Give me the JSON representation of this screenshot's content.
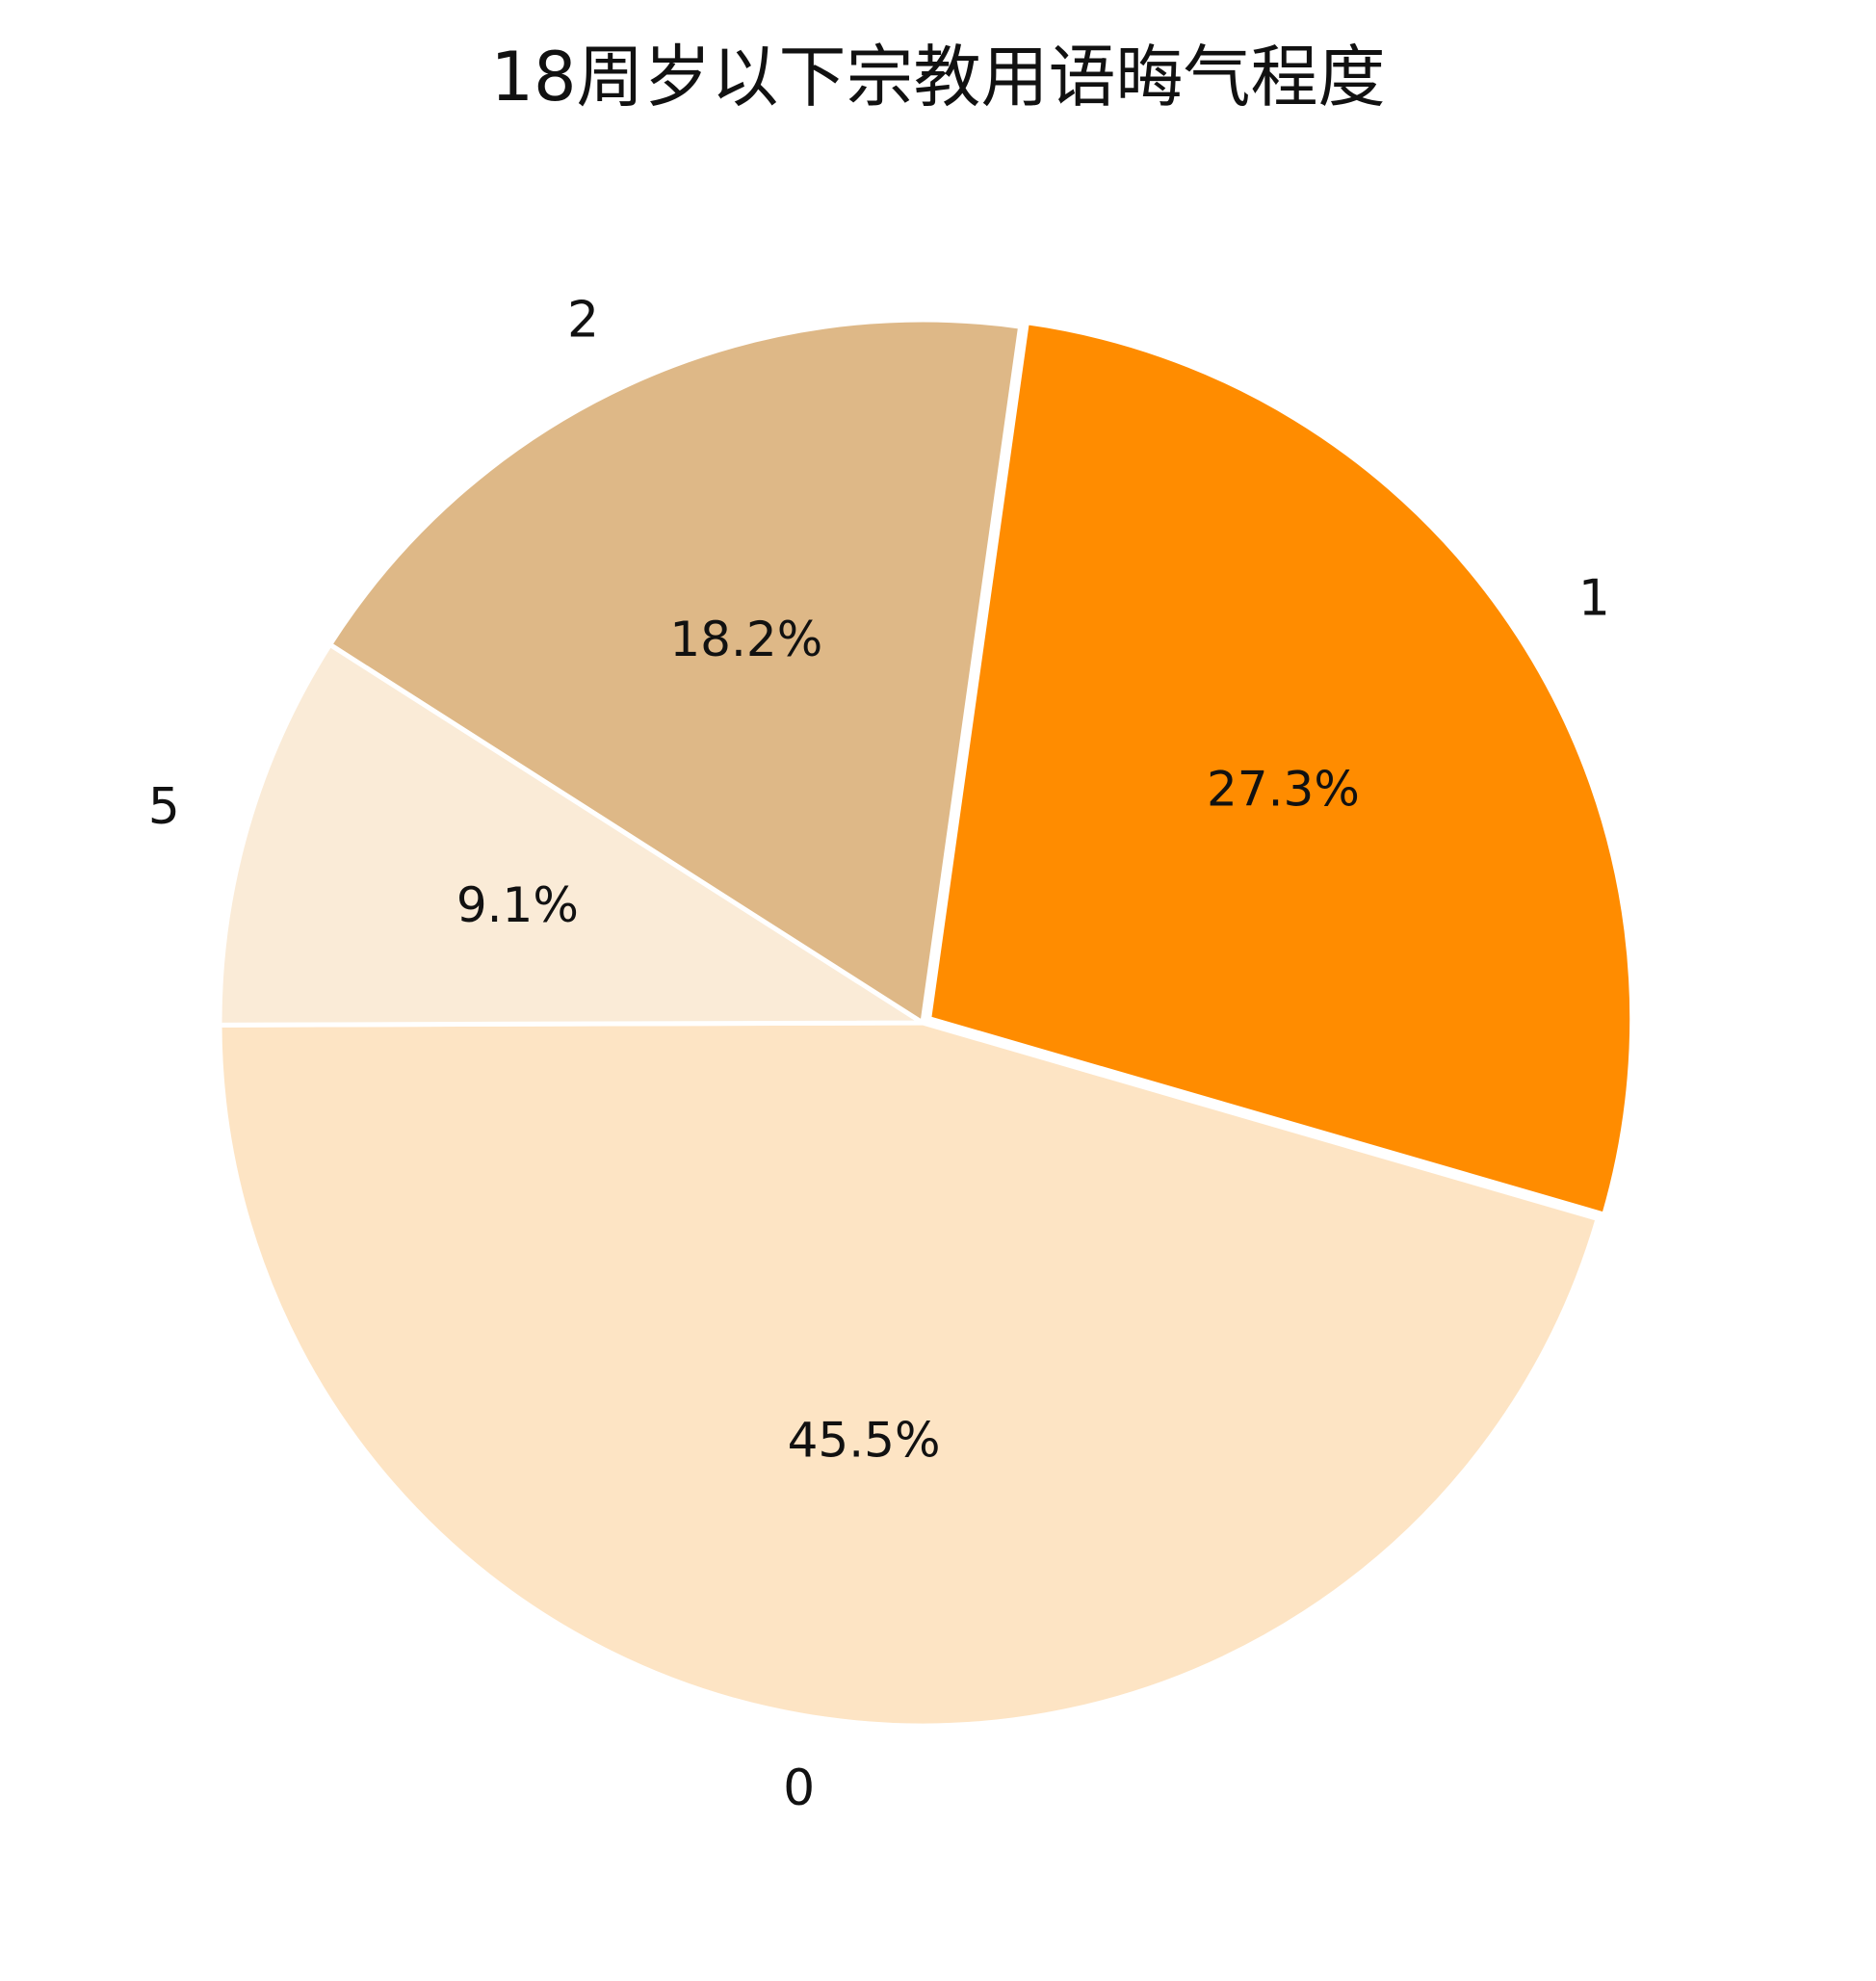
{
  "chart_data": {
    "type": "pie",
    "title": "18周岁以下宗教用语晦气程度",
    "slices": [
      {
        "label": "1",
        "value": 27.3,
        "pct_label": "27.3%",
        "color": "#FF8C00"
      },
      {
        "label": "0",
        "value": 45.5,
        "pct_label": "45.5%",
        "color": "#FDE4C4"
      },
      {
        "label": "5",
        "value": 9.1,
        "pct_label": "9.1%",
        "color": "#FAEBD7"
      },
      {
        "label": "2",
        "value": 18.2,
        "pct_label": "18.2%",
        "color": "#DEB887"
      }
    ],
    "start_angle_deg": 82,
    "direction": "clockwise",
    "exploded": "1"
  }
}
